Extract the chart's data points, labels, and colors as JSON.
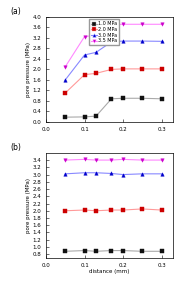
{
  "x": [
    0.05,
    0.1,
    0.13,
    0.17,
    0.2,
    0.25,
    0.3
  ],
  "subplot_a": {
    "series": [
      {
        "label": "1.0 MPa",
        "line_color": "#aaaaaa",
        "marker_color": "#111111",
        "marker": "s",
        "y": [
          0.18,
          0.19,
          0.22,
          0.88,
          0.9,
          0.9,
          0.88
        ]
      },
      {
        "label": "2.0 MPa",
        "line_color": "#ff9999",
        "marker_color": "#cc0000",
        "marker": "s",
        "y": [
          1.1,
          1.8,
          1.85,
          2.0,
          2.02,
          2.02,
          2.02
        ]
      },
      {
        "label": "3.0 MPa",
        "line_color": "#8888ff",
        "marker_color": "#0000cc",
        "marker": "^",
        "y": [
          1.6,
          2.55,
          2.65,
          3.05,
          3.08,
          3.08,
          3.07
        ]
      },
      {
        "label": "3.5 MPa",
        "line_color": "#ff88ff",
        "marker_color": "#cc00cc",
        "marker": "v",
        "y": [
          2.1,
          3.25,
          3.3,
          3.7,
          3.72,
          3.72,
          3.72
        ]
      }
    ],
    "ylabel": "pore pressure (MPa)",
    "ylim": [
      0,
      4.0
    ],
    "yticks": [
      0,
      0.4,
      0.8,
      1.2,
      1.6,
      2.0,
      2.4,
      2.8,
      3.2,
      3.6,
      4.0
    ],
    "label": "(a)"
  },
  "subplot_b": {
    "series": [
      {
        "label": "1.0 MPa",
        "line_color": "#aaaaaa",
        "marker_color": "#111111",
        "marker": "s",
        "y": [
          0.88,
          0.9,
          0.88,
          0.9,
          0.9,
          0.88,
          0.88
        ]
      },
      {
        "label": "2.0 MPa",
        "line_color": "#ff9999",
        "marker_color": "#cc0000",
        "marker": "s",
        "y": [
          2.0,
          2.02,
          2.0,
          2.02,
          2.02,
          2.05,
          2.02
        ]
      },
      {
        "label": "3.0 MPa",
        "line_color": "#8888ff",
        "marker_color": "#0000cc",
        "marker": "^",
        "y": [
          3.02,
          3.05,
          3.05,
          3.03,
          3.0,
          3.02,
          3.02
        ]
      },
      {
        "label": "3.5 MPa",
        "line_color": "#ff88ff",
        "marker_color": "#cc00cc",
        "marker": "v",
        "y": [
          3.4,
          3.42,
          3.4,
          3.4,
          3.42,
          3.4,
          3.4
        ]
      }
    ],
    "ylabel": "pore pressure (MPa)",
    "xlabel": "distance (mm)",
    "ylim": [
      0.7,
      3.6
    ],
    "yticks": [
      0.8,
      1.0,
      1.2,
      1.4,
      1.6,
      1.8,
      2.0,
      2.2,
      2.4,
      2.6,
      2.8,
      3.0,
      3.2,
      3.4
    ],
    "label": "(b)"
  },
  "xlim": [
    0,
    0.33
  ],
  "xticks": [
    0,
    0.1,
    0.2,
    0.3
  ]
}
